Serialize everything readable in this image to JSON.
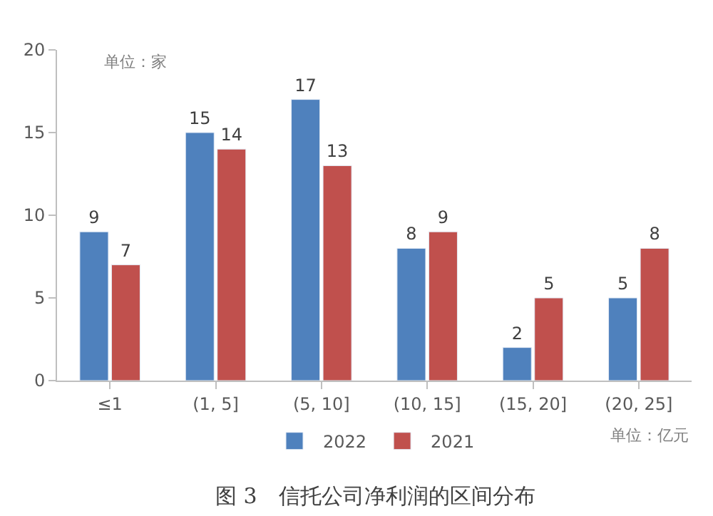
{
  "chart_data": {
    "type": "bar",
    "categories": [
      "≤1",
      "(1, 5]",
      "(5, 10]",
      "(10, 15]",
      "(15, 20]",
      "(20, 25]"
    ],
    "series": [
      {
        "name": "2022",
        "color": "#4f81bd",
        "values": [
          9,
          15,
          17,
          8,
          2,
          5
        ]
      },
      {
        "name": "2021",
        "color": "#c0504d",
        "values": [
          7,
          14,
          13,
          9,
          5,
          8
        ]
      }
    ],
    "ylim": [
      0,
      20
    ],
    "yticks": [
      0,
      5,
      10,
      15,
      20
    ],
    "grid": false,
    "legend": "bottom",
    "data_labels": true,
    "annotations": [
      "单位：家",
      "单位：亿元",
      "图 3　信托公司净利润的区间分布"
    ]
  }
}
